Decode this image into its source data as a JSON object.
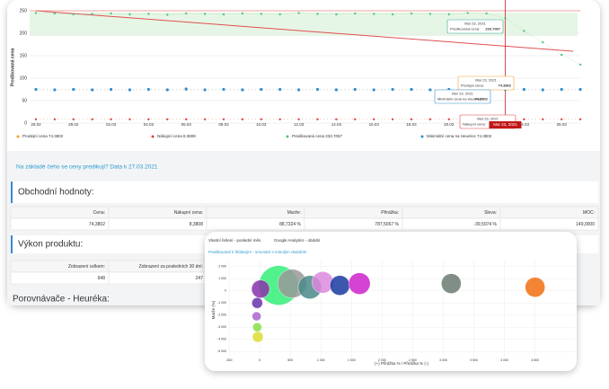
{
  "price_chart": {
    "type": "line",
    "y_label": "Predikovaná cena",
    "categories": [
      "26.02",
      null,
      "28.02",
      null,
      "02.03",
      null,
      "04.03",
      null,
      "06.03",
      null,
      "08.03",
      null,
      "10.03",
      null,
      "12.03",
      null,
      "14.03",
      null,
      "16.03",
      null,
      "18.03",
      null,
      "20.03",
      null,
      "22.03",
      null,
      "24.03",
      null,
      "26.03",
      null
    ],
    "ylim": [
      0,
      250
    ],
    "yticks": [
      0,
      50,
      100,
      150,
      200,
      250
    ],
    "series": [
      {
        "name": "Prodejní cena 74.3802",
        "color": "#f0a030",
        "values": [
          74,
          74,
          74,
          74,
          74,
          74,
          74,
          74,
          74,
          74,
          74,
          74,
          74,
          74,
          74,
          74,
          74,
          74,
          74,
          74,
          74,
          74,
          74,
          74,
          74,
          74.3802,
          74,
          74,
          74,
          74
        ]
      },
      {
        "name": "Nákupní cena 8.3808",
        "color": "#e04040",
        "values": [
          8.4,
          8.4,
          8.4,
          8.4,
          8.4,
          8.4,
          8.4,
          8.4,
          8.4,
          8.4,
          8.4,
          8.4,
          8.4,
          8.4,
          8.4,
          8.4,
          8.4,
          8.4,
          8.4,
          8.4,
          8.4,
          8.4,
          8.4,
          8.4,
          8.4,
          8.3808,
          8.4,
          8.4,
          8.4,
          8.4
        ]
      },
      {
        "name": "Predikovaná cena 233.7067",
        "color": "#50c878",
        "values": [
          245,
          244,
          242,
          243,
          244,
          242,
          243,
          241,
          244,
          243,
          242,
          244,
          243,
          242,
          245,
          243,
          242,
          244,
          243,
          242,
          244,
          243,
          242,
          245,
          244,
          233.7067,
          205,
          180,
          152,
          130
        ]
      },
      {
        "name": "Minimální cena na Heuréce 74.3802",
        "color": "#3090d0",
        "values": [
          75,
          74,
          75,
          74,
          75,
          74,
          75,
          74,
          76,
          74,
          75,
          74,
          75,
          75,
          74,
          75,
          74,
          75,
          74,
          75,
          75,
          74,
          75,
          74,
          75,
          74.3802,
          75,
          74,
          75,
          75
        ]
      }
    ],
    "trend": {
      "color": "#e05050",
      "values": [
        250,
        160
      ]
    },
    "marker_label": "Mar 23, 2021",
    "tooltips": [
      {
        "date": "Mar 23, 2021",
        "label": "Predikovaná cena:",
        "value": "233.7067"
      },
      {
        "date": "Mar 23, 2021",
        "label": "Prodejní cena:",
        "value": "74.3802"
      },
      {
        "date": "Mar 23, 2021",
        "label": "Minimální cena na Heuréce:",
        "value": "74.3802"
      },
      {
        "date": "Mar 23, 2021",
        "label": "Nákupní cena:",
        "value": "8.3808"
      }
    ]
  },
  "info_link": "Na základě čeho se ceny predikují? Data k 27.03.2021",
  "business": {
    "title": "Obchodní hodnoty:",
    "headers": [
      "Cena:",
      "Nákupní cena:",
      "Marže:",
      "Přirážka:",
      "Sleva:",
      "MOC:"
    ],
    "values": [
      "74,3802",
      "8,3808",
      "88,7324 %",
      "787,5067 %",
      "-39,5974 %",
      "149,0000"
    ]
  },
  "performance": {
    "title": "Výkon produktu:",
    "headers": [
      "Zobrazení celkem:",
      "Zobrazení za posledních 30 dní:"
    ],
    "values": [
      "948",
      "247"
    ]
  },
  "comparators_title": "Porovnávače - Heuréka:",
  "bubble_chart": {
    "type": "bubble",
    "tabs": [
      "Vlastní řešení - poslední měs.",
      "Google Analytics - období"
    ],
    "subtitle": "Predikované k hlídaným - srovnání s minulým obdobím",
    "x_label": "(+) Přirážka % / Přirážka % (-)",
    "y_label": "Marže (%)",
    "xlim": [
      -500,
      5150
    ],
    "xticks": [
      -500,
      0,
      500,
      {
        "value": 1000,
        "label": "1 000"
      },
      {
        "value": 1500,
        "label": "1 500"
      },
      {
        "value": 2000,
        "label": "2 000"
      },
      {
        "value": 2500,
        "label": "2 500"
      },
      {
        "value": 3000,
        "label": "3 000"
      },
      {
        "value": 3500,
        "label": "3 500"
      },
      {
        "value": 4000,
        "label": "4 000"
      },
      {
        "value": 4500,
        "label": "4 500"
      }
    ],
    "ylim": [
      -5500,
      2500
    ],
    "yticks": [
      {
        "value": 2000,
        "label": "2 000"
      },
      {
        "value": 1000,
        "label": "1 000"
      },
      0,
      {
        "value": -1000,
        "label": "-1 000"
      },
      {
        "value": -2000,
        "label": "-2 000"
      },
      {
        "value": -3000,
        "label": "-3 000"
      },
      {
        "value": -4000,
        "label": "-4 000"
      },
      {
        "value": -5000,
        "label": "-5 000"
      }
    ],
    "x": [
      310,
      530,
      820,
      1030,
      1310,
      1630,
      3130,
      4500,
      15,
      -40,
      -50,
      -40,
      -30
    ],
    "values": [
      450,
      600,
      300,
      700,
      450,
      600,
      600,
      300,
      150,
      -1000,
      -2100,
      -3000,
      -3800
    ],
    "sizes": [
      22,
      16,
      13,
      12,
      11,
      12,
      11,
      11,
      10,
      6,
      5,
      5,
      6
    ],
    "colors": [
      "#33ee77",
      "#999999",
      "#4a8a88",
      "#dd88dd",
      "#1a3aa0",
      "#cc22cc",
      "#6a7a70",
      "#f07010",
      "#8833aa",
      "#6633aa",
      "#aa66cc",
      "#88dd44",
      "#dddd33"
    ]
  }
}
